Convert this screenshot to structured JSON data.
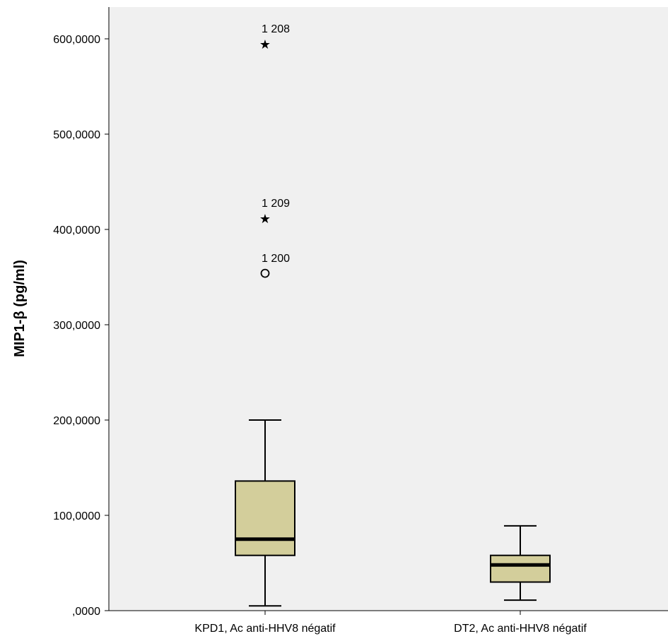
{
  "chart_data": {
    "type": "boxplot",
    "title": "",
    "xlabel": "",
    "ylabel": "MIP1-β (pg/ml)",
    "ylim": [
      0,
      670
    ],
    "y_ticks": [
      0,
      100,
      200,
      300,
      400,
      500,
      600
    ],
    "y_tick_labels": [
      ",0000",
      "100,0000",
      "200,0000",
      "300,0000",
      "400,0000",
      "500,0000",
      "600,0000"
    ],
    "grid": false,
    "categories": [
      "KPD1, Ac anti-HHV8 négatif",
      "DT2, Ac anti-HHV8 négatif"
    ],
    "boxes": [
      {
        "category": "KPD1, Ac anti-HHV8 négatif",
        "whisker_low": 5,
        "q1": 58,
        "median": 75,
        "q3": 136,
        "whisker_high": 200,
        "outliers": [
          {
            "id": "1 208",
            "value": 595,
            "marker": "star"
          },
          {
            "id": "1 209",
            "value": 412,
            "marker": "star"
          },
          {
            "id": "1 200",
            "value": 354,
            "marker": "circle"
          }
        ]
      },
      {
        "category": "DT2, Ac anti-HHV8 négatif",
        "whisker_low": 11,
        "q1": 30,
        "median": 48,
        "q3": 58,
        "whisker_high": 89,
        "outliers": []
      }
    ]
  },
  "colors": {
    "plot_background": "#f0f0f0",
    "box_fill": "#d3ce9b",
    "line": "#000000"
  }
}
